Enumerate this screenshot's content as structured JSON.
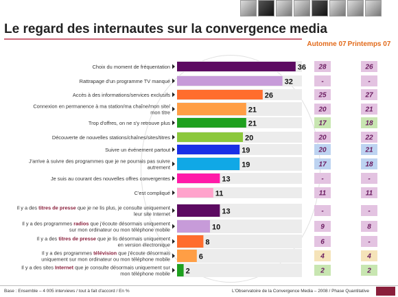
{
  "title": "Le regard des internautes sur la convergence media",
  "columns": {
    "autumn": "Automne 07",
    "spring": "Printemps 07"
  },
  "footer": {
    "left": "Base : Ensemble – 4 005 interviews / tout à fait d'accord / En %",
    "right": "L'Observatoire de la Convergence Media – 2008 / Phase Quantitative"
  },
  "colors": {
    "title_rule": "#cc6677",
    "column_header": "#e26a1a",
    "value_text": "#6a1a5f",
    "box_neutral": "#e3c3e1",
    "box_up": "#bdd3f1",
    "box_down": "#c8e6b1",
    "box_peach": "#f5e3b9"
  },
  "chart_data": {
    "type": "bar",
    "orientation": "horizontal",
    "xlim": [
      0,
      40
    ],
    "categories": [
      [
        "Choix du moment de fréquentation"
      ],
      [
        "Rattrapage d'un programme TV manqué"
      ],
      [
        "Accès à des informations/services exclusifs"
      ],
      [
        "Connexion en permanence à ma station/ma chaîne/mon site/",
        "mon titre"
      ],
      [
        "Trop d'offres, on ne s'y retrouve plus"
      ],
      [
        "Découverte de nouvelles stations/chaînes/sites/titres"
      ],
      [
        "Suivre un événement partout"
      ],
      [
        "J'arrive à suivre des programmes que je ne pourrais pas suivre",
        "autrement"
      ],
      [
        "Je suis au courant des nouvelles offres convergentes"
      ],
      [
        "C'est compliqué"
      ],
      [
        {
          "b": "Il y a des "
        },
        {
          "bold": "titres de presse"
        },
        {
          "b": " que je ne lis plus, je consulte uniquement"
        },
        {
          "br": true
        },
        {
          "b": "leur site Internet"
        }
      ],
      [
        {
          "b": "Il y a des programmes "
        },
        {
          "bold": "radios"
        },
        {
          "b": " que j'écoute désormais uniquement"
        },
        {
          "br": true
        },
        {
          "b": "sur mon ordinateur ou mon téléphone mobile"
        }
      ],
      [
        {
          "b": "Il y a des "
        },
        {
          "bold": "titres de presse"
        },
        {
          "b": " que je lis désormais uniquement"
        },
        {
          "br": true
        },
        {
          "b": "en version électronique"
        }
      ],
      [
        {
          "b": "Il y a des programmes "
        },
        {
          "bold": "télévision"
        },
        {
          "b": " que j'écoute désormais"
        },
        {
          "br": true
        },
        {
          "b": "uniquement sur mon ordinateur ou mon téléphone mobile"
        }
      ],
      [
        {
          "b": "Il y a des sites "
        },
        {
          "bold": "Internet"
        },
        {
          "b": " que je consulte désormais uniquement sur"
        },
        {
          "br": true
        },
        {
          "b": "mon téléphone mobile"
        }
      ]
    ],
    "values": [
      36,
      32,
      26,
      21,
      21,
      20,
      19,
      19,
      13,
      11,
      13,
      10,
      8,
      6,
      2
    ],
    "bar_colors": [
      "#5c0a61",
      "#c79bd9",
      "#ff6d2d",
      "#ff9e45",
      "#1fa01f",
      "#8cc83c",
      "#1a2fe6",
      "#10a8e6",
      "#ff1aa8",
      "#ffa3cc",
      "#5c0a61",
      "#c79bd9",
      "#ff6d2d",
      "#ff9e45",
      "#1fa01f"
    ],
    "autumn_07": [
      "28",
      "-",
      "25",
      "20",
      "17",
      "20",
      "20",
      "17",
      "-",
      "11",
      "-",
      "9",
      "6",
      "4",
      "2"
    ],
    "spring_07": [
      "26",
      "-",
      "27",
      "21",
      "18",
      "22",
      "21",
      "18",
      "-",
      "11",
      "-",
      "8",
      "-",
      "4",
      "2"
    ],
    "autumn_box": [
      "box_neutral",
      "box_neutral",
      "box_neutral",
      "box_neutral",
      "box_down",
      "box_neutral",
      "box_up",
      "box_up",
      "box_neutral",
      "box_neutral",
      "box_neutral",
      "box_neutral",
      "box_neutral",
      "box_peach",
      "box_down"
    ],
    "spring_box": [
      "box_neutral",
      "box_neutral",
      "box_neutral",
      "box_neutral",
      "box_down",
      "box_neutral",
      "box_up",
      "box_up",
      "box_neutral",
      "box_neutral",
      "box_neutral",
      "box_neutral",
      "box_neutral",
      "box_peach",
      "box_down"
    ]
  }
}
